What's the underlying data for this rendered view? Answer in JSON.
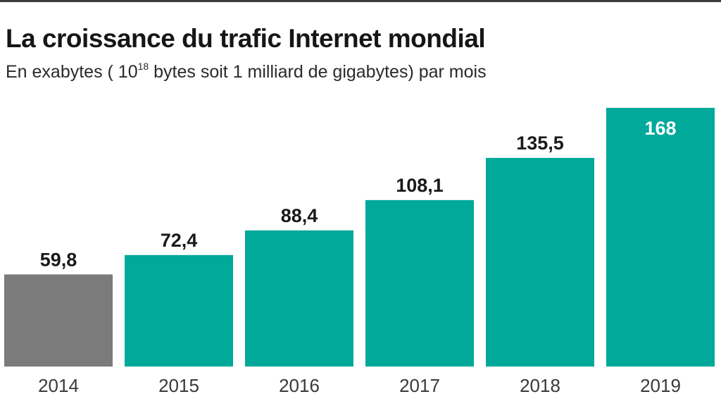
{
  "chart_data": {
    "type": "bar",
    "title": "La croissance du trafic Internet mondial",
    "subtitle": {
      "before": "En exabytes ( 10",
      "sup": "18",
      "after": " bytes soit 1 milliard de gigabytes) par mois"
    },
    "categories": [
      "2014",
      "2015",
      "2016",
      "2017",
      "2018",
      "2019"
    ],
    "values": [
      59.8,
      72.4,
      88.4,
      108.1,
      135.5,
      168
    ],
    "value_labels": [
      "59,8",
      "72,4",
      "88,4",
      "108,1",
      "135,5",
      "168"
    ],
    "ylim": [
      0,
      168
    ],
    "grid": false,
    "legend": "none",
    "colors": {
      "first_bar": "#7b7b7b",
      "bars": "#00a99a",
      "label_dark": "#1a1a1a",
      "label_inside": "#ffffff",
      "axis_text": "#3a3a3a"
    }
  }
}
